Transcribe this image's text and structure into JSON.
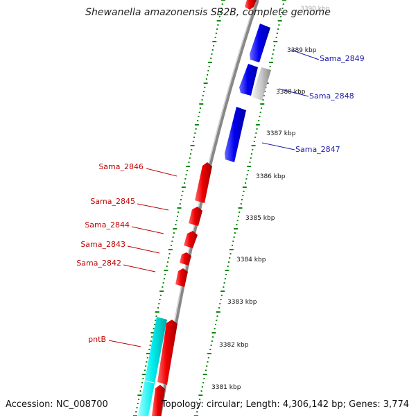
{
  "title": "Shewanella amazonensis SB2B, complete genome",
  "accession": "Accession: NC_008700",
  "topology": "Topology: circular; Length: 4,306,142 bp; Genes: 3,774",
  "colors": {
    "forward_gene": "#ee0000",
    "reverse_gene": "#0000ee",
    "other_gene": "#00eeee",
    "pseudo_gene": "#c8c8c8",
    "backbone": "#888888",
    "ticks": "#0a8a0a"
  },
  "kbp_labels": [
    "3390 kbp",
    "3389 kbp",
    "3388 kbp",
    "3387 kbp",
    "3386 kbp",
    "3385 kbp",
    "3384 kbp",
    "3383 kbp",
    "3382 kbp",
    "3381 kbp"
  ],
  "genes_red": [
    "Sama_2846",
    "Sama_2845",
    "Sama_2844",
    "Sama_2843",
    "Sama_2842",
    "pntB"
  ],
  "genes_blue": [
    "Sama_2849",
    "Sama_2848",
    "Sama_2847"
  ]
}
